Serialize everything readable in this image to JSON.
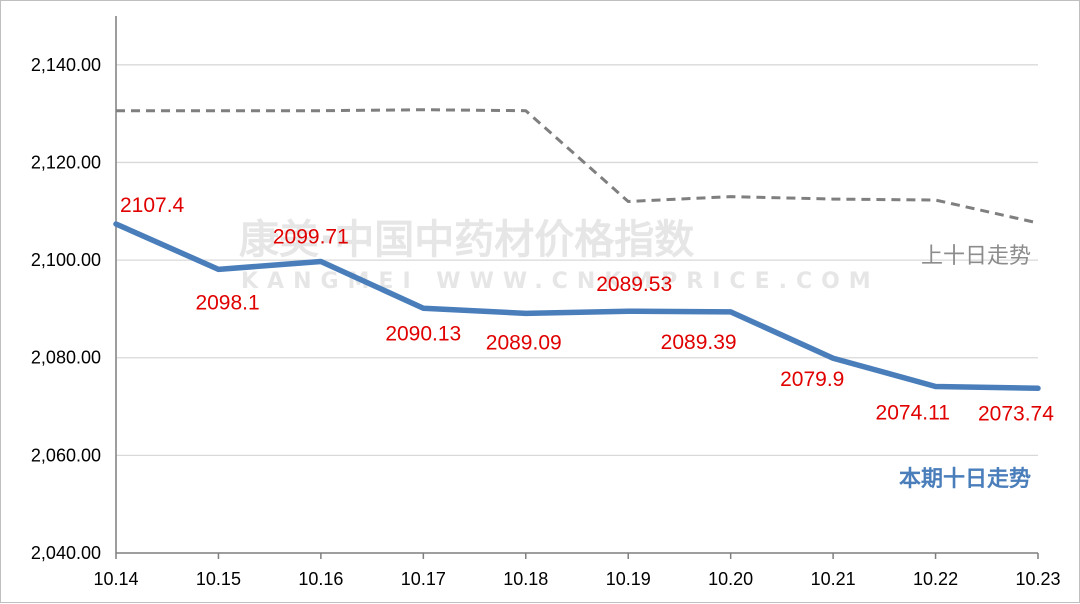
{
  "chart_data": {
    "type": "line",
    "categories": [
      "10.14",
      "10.15",
      "10.16",
      "10.17",
      "10.18",
      "10.19",
      "10.20",
      "10.21",
      "10.22",
      "10.23"
    ],
    "ylim": [
      2040,
      2150
    ],
    "yticks": [
      "2,040.00",
      "2,060.00",
      "2,080.00",
      "2,100.00",
      "2,120.00",
      "2,140.00"
    ],
    "grid": true,
    "series": [
      {
        "name": "本期十日走势",
        "color": "#4a7ebb",
        "style": "solid",
        "values": [
          2107.4,
          2098.1,
          2099.71,
          2090.13,
          2089.09,
          2089.53,
          2089.39,
          2079.9,
          2074.11,
          2073.74
        ],
        "labels": [
          "2107.4",
          "2098.1",
          "2099.71",
          "2090.13",
          "2089.09",
          "2089.53",
          "2089.39",
          "2079.9",
          "2074.11",
          "2073.74"
        ]
      },
      {
        "name": "上十日走势",
        "color": "#7f7f7f",
        "style": "dashed",
        "values": [
          2130.6,
          2130.6,
          2130.6,
          2130.8,
          2130.6,
          2112.0,
          2113.0,
          2112.5,
          2112.3,
          2107.6
        ]
      }
    ],
    "label_color": "#e00000"
  },
  "watermark": {
    "text": "康美·中国中药材价格指数",
    "subtext": "KANGMEI WWW.CNKMPRICE.COM"
  }
}
